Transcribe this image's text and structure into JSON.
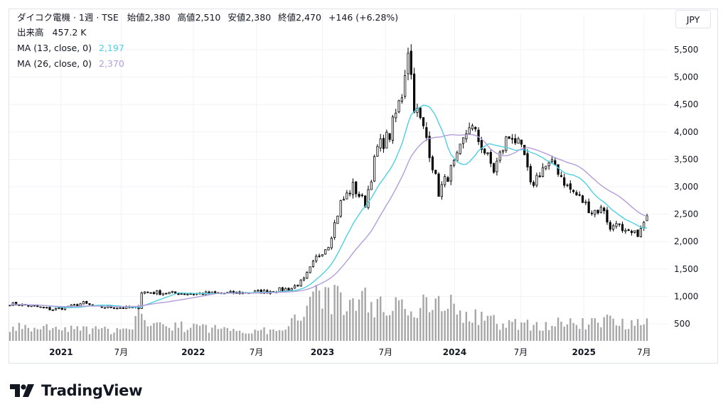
{
  "header": {
    "symbol": "ダイコク電機 · 1週 · TSE",
    "open_label": "始値",
    "open_value": "2,380",
    "high_label": "高値",
    "high_value": "2,510",
    "low_label": "安値",
    "low_value": "2,380",
    "close_label": "終値",
    "close_value": "2,470",
    "change": "+146 (+6.28%)"
  },
  "volume_legend": {
    "label": "出来高",
    "value": "457.2 K"
  },
  "ma13_legend": {
    "label": "MA (13, close, 0)",
    "value": "2,197"
  },
  "ma26_legend": {
    "label": "MA (26, close, 0)",
    "value": "2,370"
  },
  "currency": "JPY",
  "brand": "TradingView",
  "colors": {
    "up": "#ffffff",
    "down": "#000000",
    "wick": "#000000",
    "ma13": "#4dd0e1",
    "ma26": "#b39ddb",
    "volume": "#a6a6a6",
    "grid": "#f0f3fa"
  },
  "chart_data": {
    "type": "candlestick",
    "interval": "1 week",
    "ylim": [
      0,
      5750
    ],
    "y_ticks": [
      "500",
      "1,000",
      "1,500",
      "2,000",
      "2,500",
      "3,000",
      "3,500",
      "4,000",
      "4,500",
      "5,000",
      "5,500"
    ],
    "x_ticks": [
      {
        "label": "2021",
        "bold": true
      },
      {
        "label": "7月",
        "bold": false
      },
      {
        "label": "2022",
        "bold": true
      },
      {
        "label": "7月",
        "bold": false
      },
      {
        "label": "2023",
        "bold": true
      },
      {
        "label": "7月",
        "bold": false
      },
      {
        "label": "2024",
        "bold": true
      },
      {
        "label": "7月",
        "bold": false
      },
      {
        "label": "2025",
        "bold": true
      },
      {
        "label": "7月",
        "bold": false
      }
    ],
    "price_anchors": [
      [
        0,
        870
      ],
      [
        8,
        820
      ],
      [
        14,
        760
      ],
      [
        20,
        820
      ],
      [
        24,
        880
      ],
      [
        28,
        810
      ],
      [
        34,
        800
      ],
      [
        40,
        790
      ],
      [
        42,
        800
      ],
      [
        43,
        1080
      ],
      [
        48,
        1070
      ],
      [
        60,
        1050
      ],
      [
        72,
        1060
      ],
      [
        84,
        1090
      ],
      [
        92,
        1150
      ],
      [
        96,
        1300
      ],
      [
        100,
        1700
      ],
      [
        104,
        1950
      ],
      [
        108,
        2700
      ],
      [
        112,
        3000
      ],
      [
        116,
        2700
      ],
      [
        120,
        3700
      ],
      [
        124,
        3950
      ],
      [
        128,
        4700
      ],
      [
        130,
        5550
      ],
      [
        132,
        4500
      ],
      [
        136,
        3900
      ],
      [
        140,
        2900
      ],
      [
        142,
        3100
      ],
      [
        146,
        3500
      ],
      [
        150,
        4150
      ],
      [
        154,
        3750
      ],
      [
        158,
        3300
      ],
      [
        162,
        3850
      ],
      [
        164,
        3950
      ],
      [
        168,
        3550
      ],
      [
        170,
        3000
      ],
      [
        174,
        3350
      ],
      [
        178,
        3400
      ],
      [
        182,
        3000
      ],
      [
        186,
        2800
      ],
      [
        190,
        2550
      ],
      [
        194,
        2600
      ],
      [
        196,
        2200
      ],
      [
        198,
        2400
      ],
      [
        200,
        2150
      ],
      [
        204,
        2130
      ],
      [
        206,
        2200
      ],
      [
        208,
        2470
      ]
    ],
    "volume_anchors_k": [
      [
        0,
        300
      ],
      [
        40,
        220
      ],
      [
        43,
        800
      ],
      [
        46,
        350
      ],
      [
        90,
        200
      ],
      [
        96,
        800
      ],
      [
        100,
        1300
      ],
      [
        104,
        1000
      ],
      [
        110,
        800
      ],
      [
        115,
        1000
      ],
      [
        120,
        750
      ],
      [
        128,
        900
      ],
      [
        133,
        450
      ],
      [
        136,
        950
      ],
      [
        140,
        1100
      ],
      [
        146,
        650
      ],
      [
        150,
        550
      ],
      [
        160,
        400
      ],
      [
        170,
        350
      ],
      [
        180,
        400
      ],
      [
        190,
        380
      ],
      [
        195,
        500
      ],
      [
        200,
        420
      ],
      [
        208,
        457
      ]
    ],
    "last_close": 2470,
    "last_open": 2380,
    "last_high": 2510,
    "last_low": 2380,
    "last_volume_k": 457.2
  }
}
